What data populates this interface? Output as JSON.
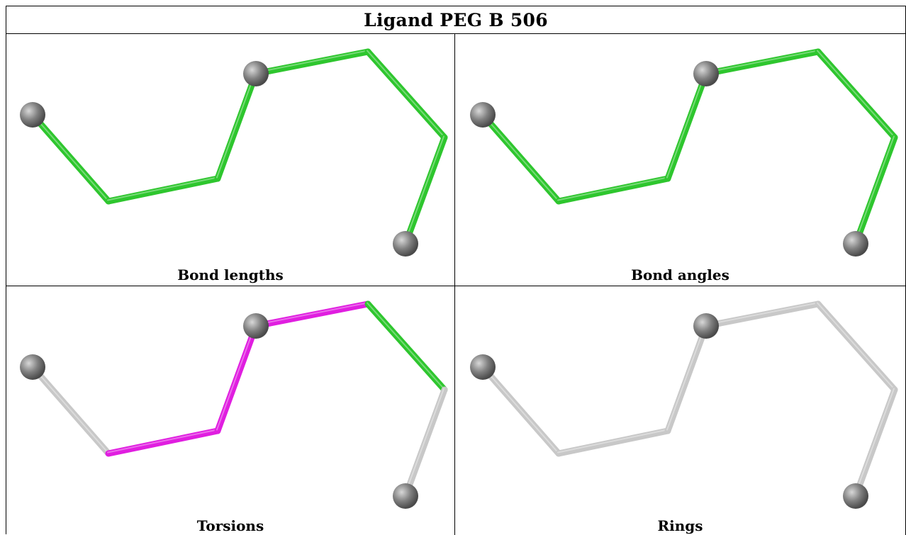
{
  "title": "Ligand PEG B 506",
  "panels": [
    {
      "caption": "Bond lengths",
      "bond_colors": [
        "#2ec62e",
        "#2ec62e",
        "#2ec62e",
        "#2ec62e",
        "#2ec62e",
        "#2ec62e"
      ]
    },
    {
      "caption": "Bond angles",
      "bond_colors": [
        "#2ec62e",
        "#2ec62e",
        "#2ec62e",
        "#2ec62e",
        "#2ec62e",
        "#2ec62e"
      ]
    },
    {
      "caption": "Torsions",
      "bond_colors": [
        "#c8c8c8",
        "#e01ee0",
        "#e01ee0",
        "#e01ee0",
        "#2ec62e",
        "#c8c8c8"
      ]
    },
    {
      "caption": "Rings",
      "bond_colors": [
        "#c8c8c8",
        "#c8c8c8",
        "#c8c8c8",
        "#c8c8c8",
        "#c8c8c8",
        "#c8c8c8"
      ]
    }
  ],
  "colors": {
    "atom": "#808080",
    "border": "#000000"
  }
}
